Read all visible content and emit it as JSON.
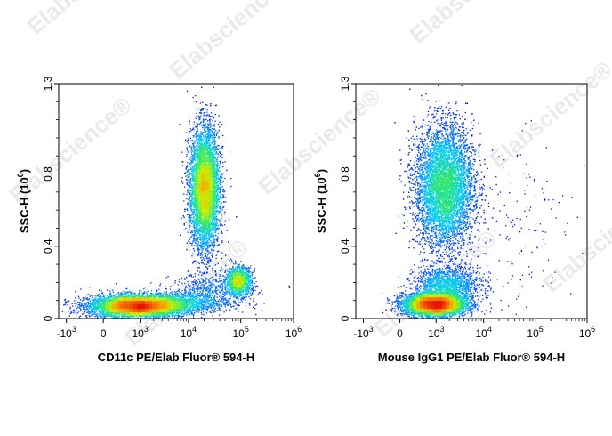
{
  "watermark": {
    "text": "Elabscience",
    "mark": "®"
  },
  "chart_data": [
    {
      "type": "scatter",
      "xlabel": "CD11c PE/Elab Fluor® 594-H",
      "ylabel": "SSC-H",
      "ylabel_exp": "6",
      "x_scale": "biexponential",
      "x_ticks": [
        {
          "base": "-10",
          "exp": "3",
          "value": -1000
        },
        {
          "base": "0",
          "exp": "",
          "value": 0
        },
        {
          "base": "10",
          "exp": "3",
          "value": 1000
        },
        {
          "base": "10",
          "exp": "4",
          "value": 10000
        },
        {
          "base": "10",
          "exp": "5",
          "value": 100000
        },
        {
          "base": "10",
          "exp": "6",
          "value": 1000000
        }
      ],
      "y_ticks": [
        {
          "label": "0",
          "value": 0
        },
        {
          "label": "0.4",
          "value": 0.4
        },
        {
          "label": "0.8",
          "value": 0.8
        },
        {
          "label": "1.3",
          "value": 1.3
        }
      ],
      "xlim": [
        -1500,
        1000000
      ],
      "ylim": [
        0,
        1.3
      ],
      "grid": false,
      "populations": [
        {
          "name": "",
          "x_center": 800,
          "y_center": 0.07,
          "x_spread_decades": 0.45,
          "y_spread": 0.03,
          "count": 6000
        },
        {
          "name": "",
          "x_center": 5000,
          "y_center": 0.09,
          "x_spread_decades": 0.55,
          "y_spread": 0.03,
          "count": 1400
        },
        {
          "name": "",
          "x_center": 20000,
          "y_center": 0.72,
          "x_spread_decades": 0.14,
          "y_spread": 0.17,
          "count": 6500
        },
        {
          "name": "",
          "x_center": 90000,
          "y_center": 0.21,
          "x_spread_decades": 0.12,
          "y_spread": 0.04,
          "count": 1200
        },
        {
          "name": "",
          "x_center": 30000,
          "y_center": 0.17,
          "x_spread_decades": 0.4,
          "y_spread": 0.04,
          "count": 500
        }
      ]
    },
    {
      "type": "scatter",
      "xlabel": "Mouse IgG1 PE/Elab Fluor® 594-H",
      "ylabel": "SSC-H",
      "ylabel_exp": "6",
      "x_scale": "biexponential",
      "x_ticks": [
        {
          "base": "-10",
          "exp": "3",
          "value": -1000
        },
        {
          "base": "0",
          "exp": "",
          "value": 0
        },
        {
          "base": "10",
          "exp": "3",
          "value": 1000
        },
        {
          "base": "10",
          "exp": "4",
          "value": 10000
        },
        {
          "base": "10",
          "exp": "5",
          "value": 100000
        },
        {
          "base": "10",
          "exp": "6",
          "value": 1000000
        }
      ],
      "y_ticks": [
        {
          "label": "0",
          "value": 0
        },
        {
          "label": "0.4",
          "value": 0.4
        },
        {
          "label": "0.8",
          "value": 0.8
        },
        {
          "label": "1.3",
          "value": 1.3
        }
      ],
      "xlim": [
        -1500,
        1000000
      ],
      "ylim": [
        0,
        1.3
      ],
      "grid": false,
      "populations": [
        {
          "name": "",
          "x_center": 900,
          "y_center": 0.08,
          "x_spread_decades": 0.3,
          "y_spread": 0.03,
          "count": 5500
        },
        {
          "name": "",
          "x_center": 1500,
          "y_center": 0.73,
          "x_spread_decades": 0.28,
          "y_spread": 0.17,
          "count": 7500
        },
        {
          "name": "",
          "x_center": 1800,
          "y_center": 0.19,
          "x_spread_decades": 0.32,
          "y_spread": 0.05,
          "count": 1500
        },
        {
          "name": "",
          "x_center": 30000,
          "y_center": 0.45,
          "x_spread_decades": 0.6,
          "y_spread": 0.3,
          "count": 180
        }
      ]
    }
  ]
}
